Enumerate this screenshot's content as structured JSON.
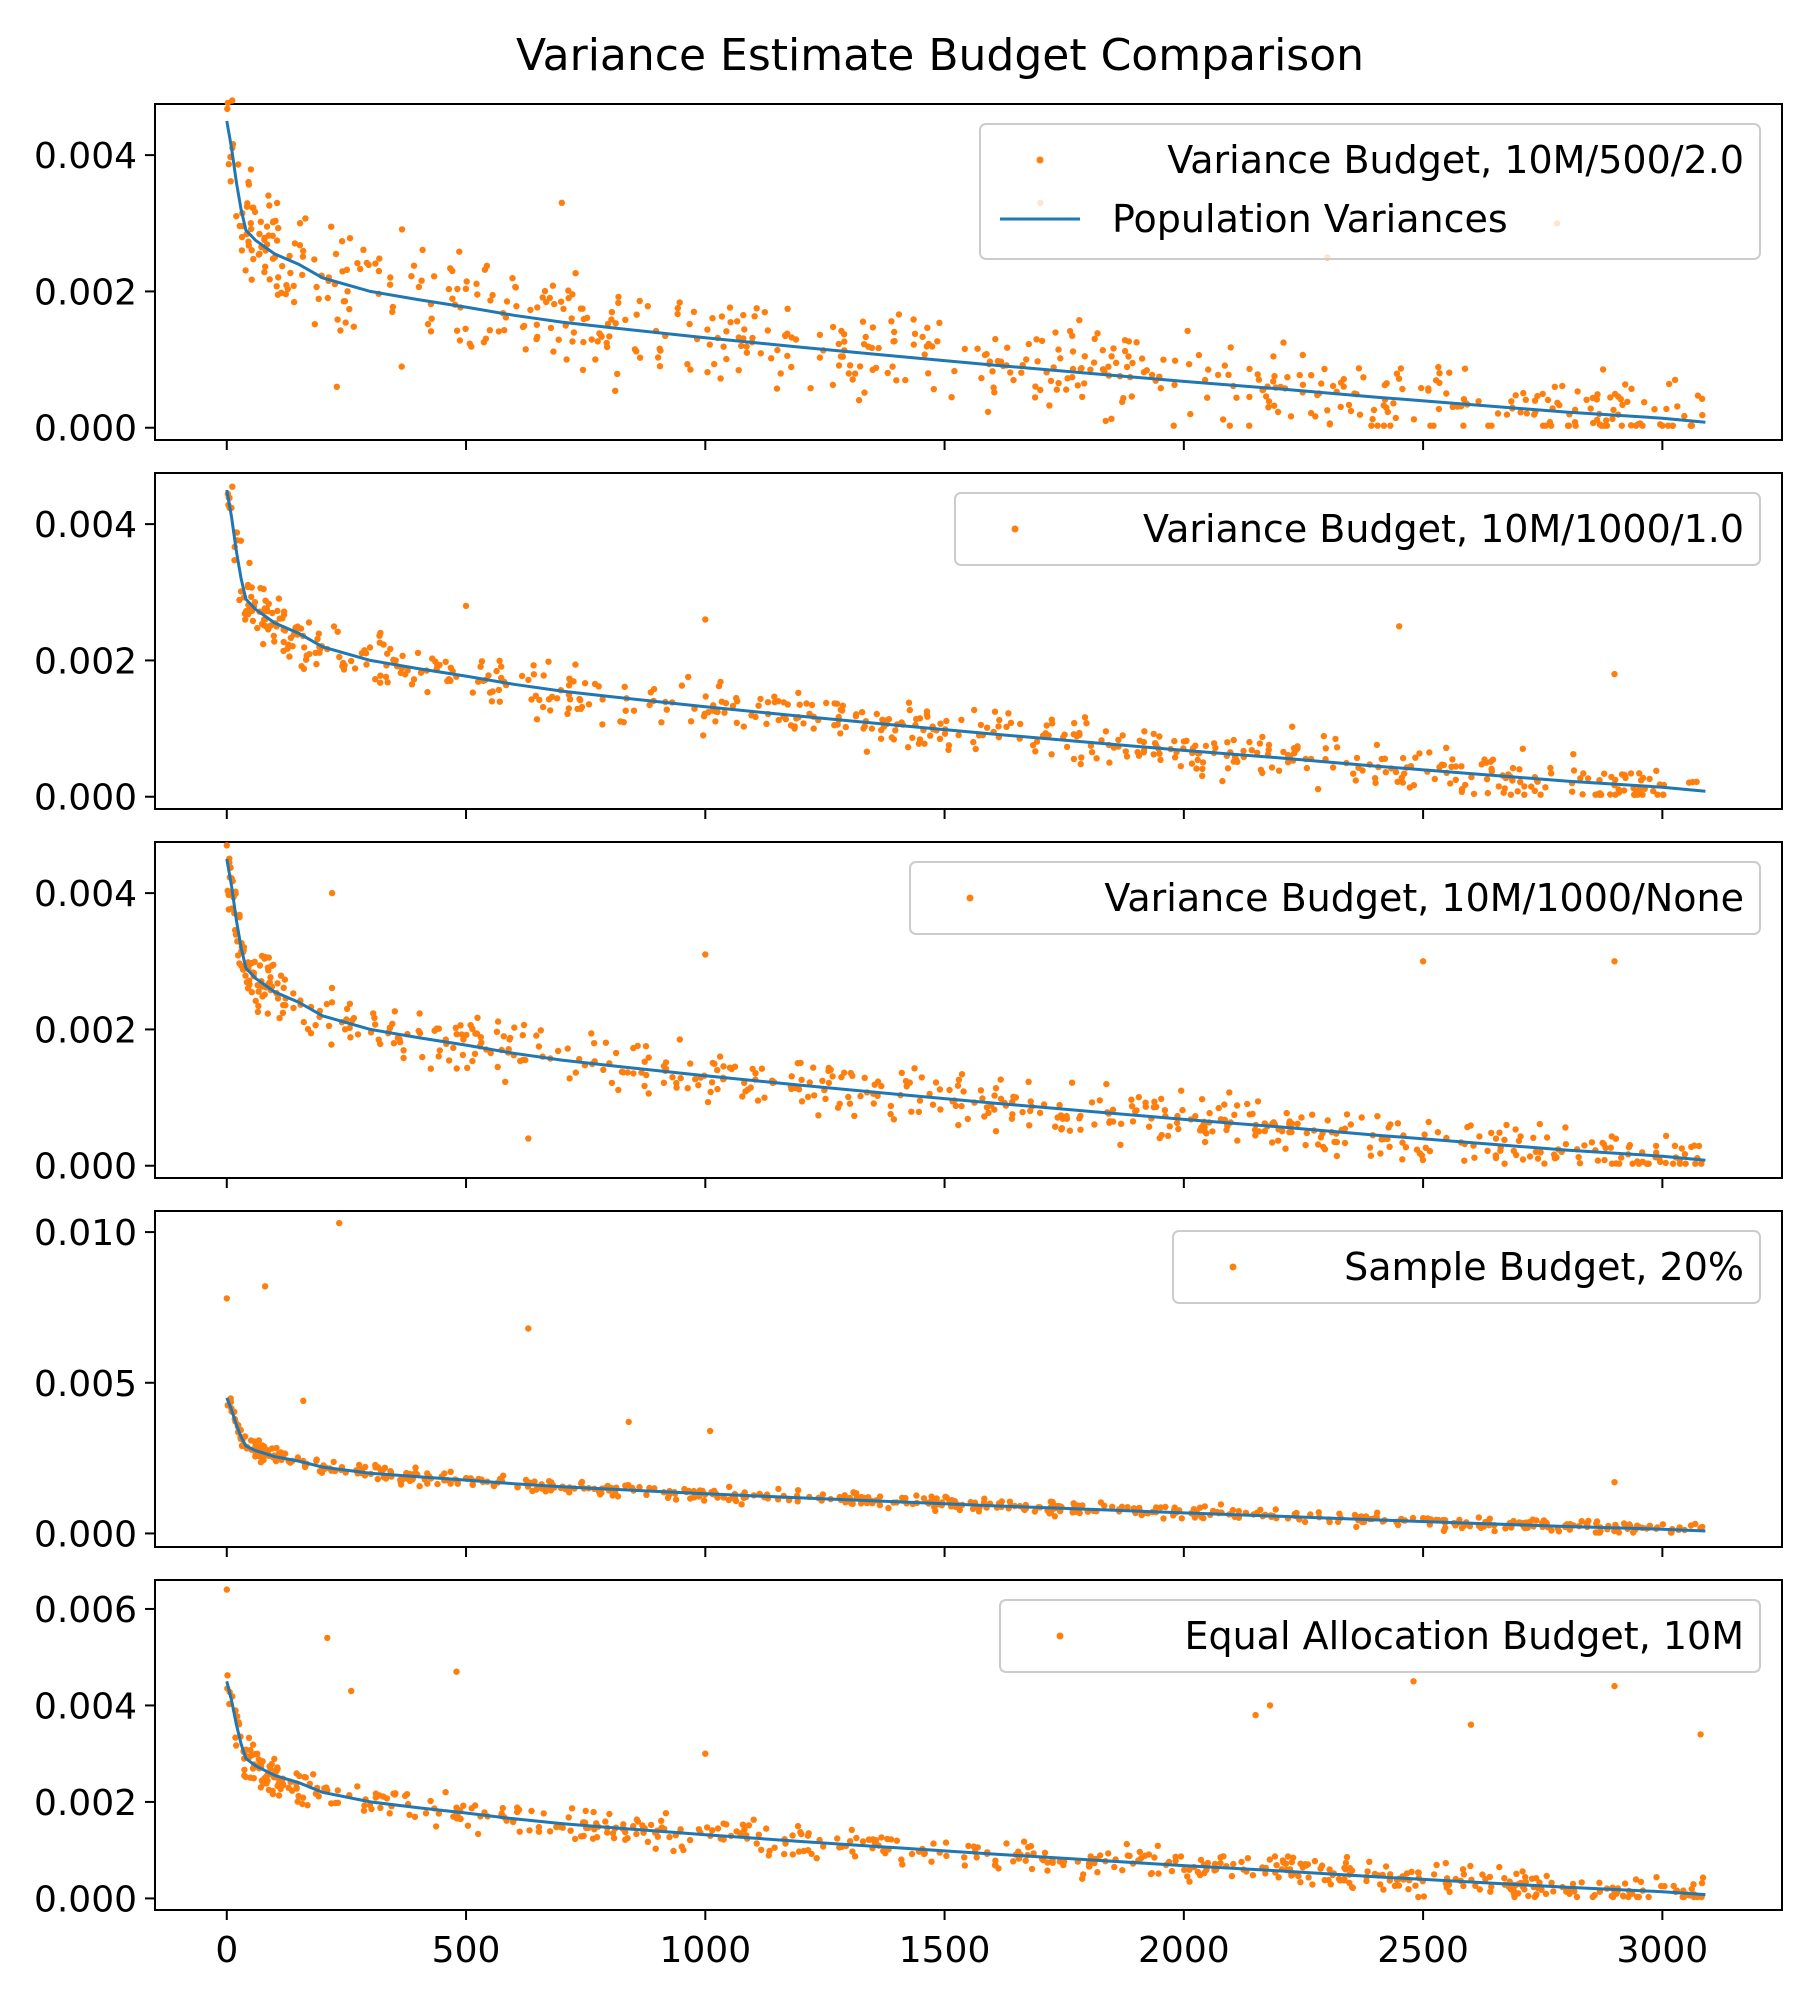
{
  "figure": {
    "title": "Variance Estimate Budget Comparison",
    "series_color": "#ff7f0e",
    "population_color": "#1f77b4"
  },
  "population_line": {
    "name": "Population Variances",
    "x": [
      0,
      10,
      20,
      30,
      40,
      60,
      80,
      100,
      150,
      200,
      300,
      400,
      500,
      600,
      700,
      800,
      1000,
      1200,
      1400,
      1600,
      1800,
      2000,
      2200,
      2400,
      2600,
      2800,
      3000,
      3090
    ],
    "y": [
      0.0045,
      0.0041,
      0.0036,
      0.0032,
      0.0029,
      0.00275,
      0.00265,
      0.00255,
      0.0024,
      0.0022,
      0.002,
      0.00188,
      0.00177,
      0.00165,
      0.00155,
      0.00147,
      0.00132,
      0.00118,
      0.00105,
      0.00092,
      0.0008,
      0.00068,
      0.00057,
      0.00045,
      0.00034,
      0.00023,
      0.00014,
      8e-05
    ]
  },
  "chart_data": [
    {
      "type": "scatter",
      "title": "Variance Estimate Budget Comparison",
      "series": [
        {
          "name": "Variance Budget, 10M/500/2.0",
          "style": "points",
          "spread": 0.0006,
          "n": 600,
          "outliers": [
            [
              230,
              0.0006
            ],
            [
              700,
              0.0033
            ],
            [
              1700,
              0.0033
            ],
            [
              2780,
              0.003
            ],
            [
              2300,
              0.0025
            ]
          ]
        },
        {
          "name": "Population Variances",
          "style": "line"
        }
      ],
      "xlim": [
        -150,
        3250
      ],
      "ylim": [
        -0.00018,
        0.00475
      ],
      "yticks": [
        "0.000",
        "0.002",
        "0.004"
      ],
      "ytick_values": [
        0,
        0.002,
        0.004
      ],
      "legend": "top-right"
    },
    {
      "type": "scatter",
      "series": [
        {
          "name": "Variance Budget, 10M/1000/1.0",
          "style": "points",
          "spread": 0.00035,
          "n": 600,
          "outliers": [
            [
              2450,
              0.0025
            ],
            [
              1000,
              0.0026
            ],
            [
              500,
              0.0028
            ],
            [
              2900,
              0.0018
            ]
          ]
        }
      ],
      "xlim": [
        -150,
        3250
      ],
      "ylim": [
        -0.00018,
        0.00475
      ],
      "yticks": [
        "0.000",
        "0.002",
        "0.004"
      ],
      "ytick_values": [
        0,
        0.002,
        0.004
      ],
      "legend": "top-right"
    },
    {
      "type": "scatter",
      "series": [
        {
          "name": "Variance Budget, 10M/1000/None",
          "style": "points",
          "spread": 0.00035,
          "n": 600,
          "outliers": [
            [
              2500,
              0.003
            ],
            [
              2900,
              0.003
            ],
            [
              1000,
              0.0031
            ],
            [
              220,
              0.004
            ],
            [
              630,
              0.0004
            ],
            [
              0,
              0.0047
            ]
          ]
        }
      ],
      "xlim": [
        -150,
        3250
      ],
      "ylim": [
        -0.00018,
        0.00475
      ],
      "yticks": [
        "0.000",
        "0.002",
        "0.004"
      ],
      "ytick_values": [
        0,
        0.002,
        0.004
      ],
      "legend": "top-right"
    },
    {
      "type": "scatter",
      "series": [
        {
          "name": "Sample Budget, 20%",
          "style": "points",
          "spread": 0.00022,
          "n": 600,
          "outliers": [
            [
              0,
              0.0078
            ],
            [
              80,
              0.0082
            ],
            [
              235,
              0.0103
            ],
            [
              630,
              0.0068
            ],
            [
              160,
              0.0044
            ],
            [
              840,
              0.0037
            ],
            [
              1010,
              0.0034
            ],
            [
              2900,
              0.0017
            ]
          ]
        }
      ],
      "xlim": [
        -150,
        3250
      ],
      "ylim": [
        -0.00045,
        0.0107
      ],
      "yticks": [
        "0.000",
        "0.005",
        "0.010"
      ],
      "ytick_values": [
        0,
        0.005,
        0.01
      ],
      "legend": "top-right"
    },
    {
      "type": "scatter",
      "series": [
        {
          "name": "Equal Allocation Budget, 10M",
          "style": "points",
          "spread": 0.0003,
          "n": 600,
          "outliers": [
            [
              0,
              0.0064
            ],
            [
              210,
              0.0054
            ],
            [
              260,
              0.0043
            ],
            [
              480,
              0.0047
            ],
            [
              2480,
              0.0045
            ],
            [
              2900,
              0.0044
            ],
            [
              2180,
              0.004
            ],
            [
              2600,
              0.0036
            ],
            [
              3080,
              0.0034
            ],
            [
              1000,
              0.003
            ],
            [
              2150,
              0.0038
            ]
          ]
        }
      ],
      "xlim": [
        -150,
        3250
      ],
      "ylim": [
        -0.00024,
        0.0066
      ],
      "yticks": [
        "0.000",
        "0.002",
        "0.004",
        "0.006"
      ],
      "ytick_values": [
        0,
        0.002,
        0.004,
        0.006
      ],
      "legend": "top-right"
    }
  ],
  "x_axis": {
    "ticks": [
      "0",
      "500",
      "1000",
      "1500",
      "2000",
      "2500",
      "3000"
    ],
    "tick_values": [
      0,
      500,
      1000,
      1500,
      2000,
      2500,
      3000
    ]
  }
}
